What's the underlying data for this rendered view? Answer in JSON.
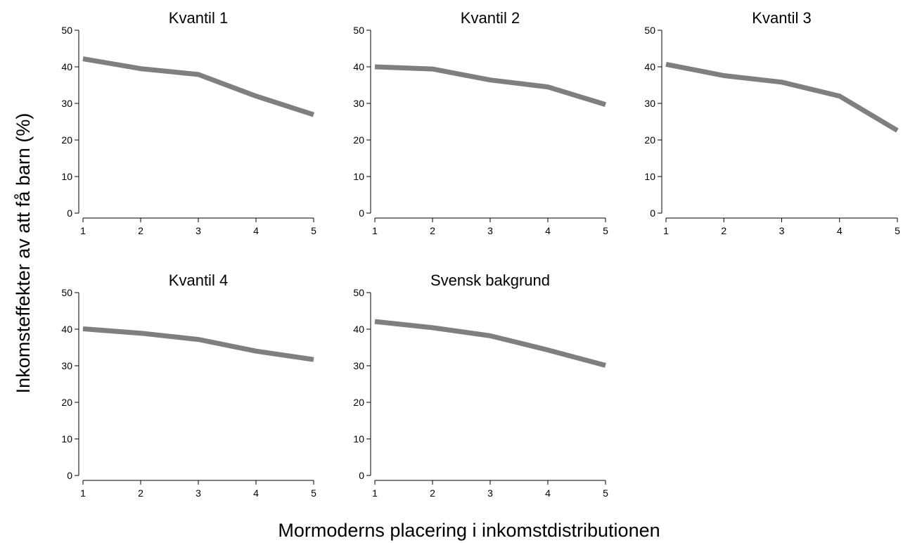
{
  "chart_data": {
    "type": "line",
    "ylabel": "Inkomsteffekter av att få barn (%)",
    "xlabel": "Mormoderns placering i inkomstdistributionen",
    "x": [
      1,
      2,
      3,
      4,
      5
    ],
    "ylim": [
      0,
      50
    ],
    "yticks": [
      0,
      10,
      20,
      30,
      40,
      50
    ],
    "grid": false,
    "line_color": "#7f7f7f",
    "panels": [
      {
        "title": "Kvantil 1",
        "values": [
          42.2,
          39.5,
          37.9,
          32.0,
          26.9
        ]
      },
      {
        "title": "Kvantil 2",
        "values": [
          40.0,
          39.4,
          36.4,
          34.5,
          29.7
        ]
      },
      {
        "title": "Kvantil 3",
        "values": [
          40.7,
          37.6,
          35.8,
          32.0,
          22.6
        ]
      },
      {
        "title": "Kvantil 4",
        "values": [
          40.1,
          38.9,
          37.2,
          34.0,
          31.7
        ]
      },
      {
        "title": "Svensk bakgrund",
        "values": [
          42.1,
          40.4,
          38.2,
          34.3,
          30.1
        ]
      }
    ]
  }
}
